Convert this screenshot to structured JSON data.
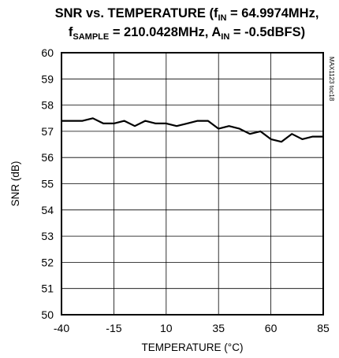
{
  "chart_data": {
    "type": "line",
    "title_parts": {
      "line1_a": "SNR vs. TEMPERATURE (f",
      "line1_sub": "IN",
      "line1_b": " = 64.9974MHz,",
      "line2_a": "f",
      "line2_sub": "SAMPLE",
      "line2_b": " = 210.0428MHz, A",
      "line2_sub2": "IN",
      "line2_c": " = -0.5dBFS)"
    },
    "xlabel": "TEMPERATURE (°C)",
    "ylabel": "SNR (dB)",
    "figure_id": "MAX1123 toc18",
    "xlim": [
      -40,
      85
    ],
    "ylim": [
      50,
      60
    ],
    "x_ticks": [
      -40,
      -15,
      10,
      35,
      60,
      85
    ],
    "y_ticks": [
      50,
      51,
      52,
      53,
      54,
      55,
      56,
      57,
      58,
      59,
      60
    ],
    "grid": true,
    "series": [
      {
        "x": [
          -40,
          -35,
          -30,
          -25,
          -20,
          -15,
          -10,
          -5,
          0,
          5,
          10,
          15,
          20,
          25,
          30,
          35,
          40,
          45,
          50,
          55,
          60,
          65,
          70,
          75,
          80,
          85
        ],
        "y": [
          57.4,
          57.4,
          57.4,
          57.5,
          57.3,
          57.3,
          57.4,
          57.2,
          57.4,
          57.3,
          57.3,
          57.2,
          57.3,
          57.4,
          57.4,
          57.1,
          57.2,
          57.1,
          56.9,
          57.0,
          56.7,
          56.6,
          56.9,
          56.7,
          56.8,
          56.8
        ]
      }
    ]
  }
}
